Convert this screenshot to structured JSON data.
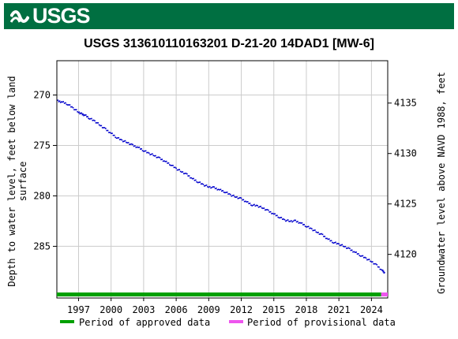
{
  "header": {
    "logo_text": "USGS",
    "banner_color": "#006f41"
  },
  "chart_data": {
    "type": "scatter",
    "title": "USGS 313610110163201 D-21-20 14DAD1 [MW-6]",
    "ylabel_left_line1": "Depth to water level, feet below land",
    "ylabel_left_line2": "surface",
    "ylabel_right": "Groundwater level above NAVD 1988, feet",
    "xlabel": "",
    "x_ticks": [
      "1997",
      "2000",
      "2003",
      "2006",
      "2009",
      "2012",
      "2015",
      "2018",
      "2021",
      "2024"
    ],
    "x_tick_values": [
      1997,
      2000,
      2003,
      2006,
      2009,
      2012,
      2015,
      2018,
      2021,
      2024
    ],
    "xlim": [
      1995.0,
      2025.5
    ],
    "y_left_ticks": [
      "270",
      "275",
      "280",
      "285"
    ],
    "y_left_tick_values": [
      270,
      275,
      280,
      285
    ],
    "ylim_left": [
      289.5,
      266.6
    ],
    "y_right_ticks": [
      "4135",
      "4130",
      "4125",
      "4120"
    ],
    "y_right_tick_values": [
      4135,
      4130,
      4125,
      4120
    ],
    "ylim_right": [
      4116.3,
      4139.2
    ],
    "grid": true,
    "series": [
      {
        "color": "#0000cc",
        "points": [
          [
            1995.1,
            270.6
          ],
          [
            1995.5,
            270.7
          ],
          [
            1996.0,
            270.9
          ],
          [
            1996.5,
            271.3
          ],
          [
            1997.0,
            271.7
          ],
          [
            1997.3,
            271.9
          ],
          [
            1997.6,
            272.0
          ],
          [
            1998.0,
            272.3
          ],
          [
            1998.5,
            272.6
          ],
          [
            1999.0,
            273.0
          ],
          [
            1999.5,
            273.4
          ],
          [
            2000.0,
            273.8
          ],
          [
            2000.5,
            274.2
          ],
          [
            2001.0,
            274.5
          ],
          [
            2001.5,
            274.7
          ],
          [
            2002.0,
            275.0
          ],
          [
            2002.5,
            275.2
          ],
          [
            2003.0,
            275.5
          ],
          [
            2003.5,
            275.8
          ],
          [
            2004.0,
            276.0
          ],
          [
            2004.5,
            276.3
          ],
          [
            2005.0,
            276.6
          ],
          [
            2005.5,
            276.9
          ],
          [
            2006.0,
            277.3
          ],
          [
            2006.5,
            277.6
          ],
          [
            2007.0,
            277.9
          ],
          [
            2007.5,
            278.3
          ],
          [
            2008.0,
            278.6
          ],
          [
            2008.5,
            278.9
          ],
          [
            2009.0,
            279.1
          ],
          [
            2009.5,
            279.2
          ],
          [
            2010.0,
            279.4
          ],
          [
            2010.5,
            279.6
          ],
          [
            2011.0,
            279.9
          ],
          [
            2011.5,
            280.1
          ],
          [
            2012.0,
            280.3
          ],
          [
            2012.5,
            280.6
          ],
          [
            2013.0,
            280.9
          ],
          [
            2013.5,
            281.0
          ],
          [
            2014.0,
            281.2
          ],
          [
            2014.5,
            281.5
          ],
          [
            2015.0,
            281.8
          ],
          [
            2015.5,
            282.1
          ],
          [
            2016.0,
            282.4
          ],
          [
            2016.5,
            282.5
          ],
          [
            2017.0,
            282.5
          ],
          [
            2017.5,
            282.7
          ],
          [
            2018.0,
            283.0
          ],
          [
            2018.5,
            283.3
          ],
          [
            2019.0,
            283.6
          ],
          [
            2019.5,
            283.9
          ],
          [
            2020.0,
            284.3
          ],
          [
            2020.5,
            284.6
          ],
          [
            2021.0,
            284.8
          ],
          [
            2021.5,
            285.0
          ],
          [
            2022.0,
            285.3
          ],
          [
            2022.5,
            285.6
          ],
          [
            2023.0,
            285.9
          ],
          [
            2023.5,
            286.2
          ],
          [
            2024.0,
            286.5
          ],
          [
            2024.5,
            286.9
          ],
          [
            2025.0,
            287.4
          ],
          [
            2025.2,
            287.6
          ]
        ]
      }
    ],
    "approval_bars": {
      "approved": {
        "x_start": 1995.0,
        "x_end": 2024.9,
        "color": "#00a000"
      },
      "provisional": {
        "x_start": 2024.9,
        "x_end": 2025.5,
        "color": "#ee55ee"
      }
    },
    "legend": [
      {
        "label": "Period of approved data",
        "color": "#00a000"
      },
      {
        "label": "Period of provisional data",
        "color": "#ee55ee"
      }
    ],
    "legend_placement": "bottom"
  }
}
